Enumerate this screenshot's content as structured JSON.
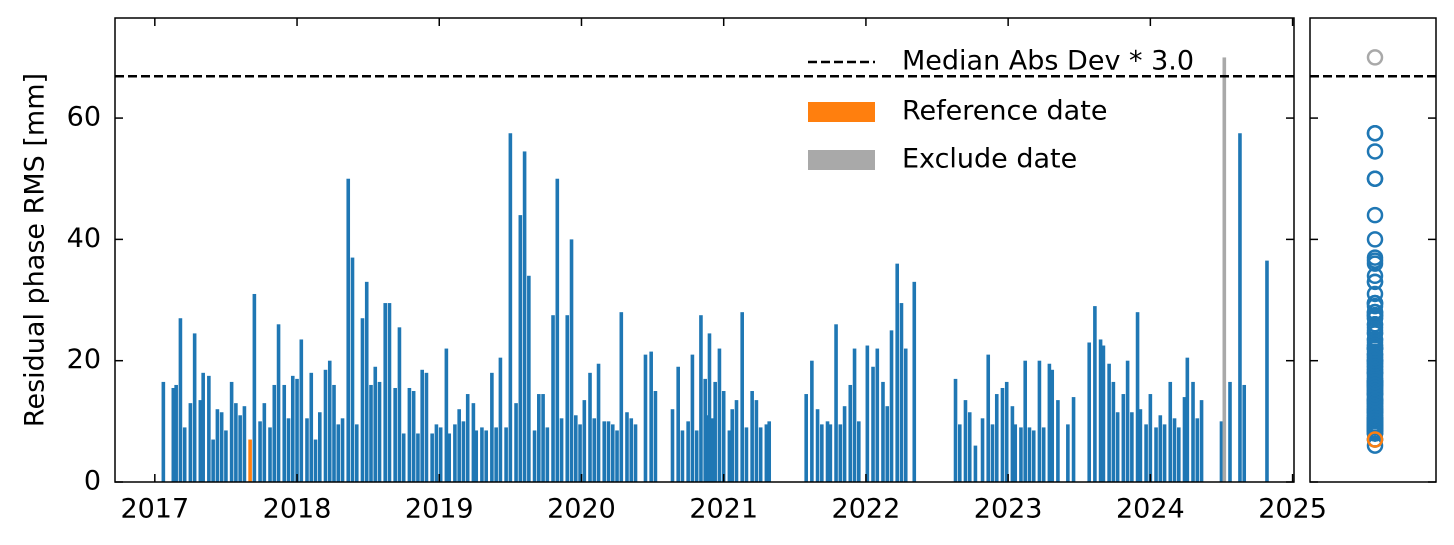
{
  "chart_data": {
    "type": "bar",
    "ylabel": "Residual phase RMS [mm]",
    "xlim": [
      2016.72,
      2025.01
    ],
    "ylim": [
      0,
      76.5
    ],
    "xticks": [
      2017,
      2018,
      2019,
      2020,
      2021,
      2022,
      2023,
      2024,
      2025
    ],
    "yticks": [
      0,
      20,
      40,
      60
    ],
    "legend": "upper right",
    "threshold": {
      "name": "Median Abs Dev * 3.0",
      "value": 66.9,
      "color": "#000000"
    },
    "series": [
      {
        "color": "#1f77b4",
        "x": [
          2017.06,
          2017.13,
          2017.15,
          2017.18,
          2017.21,
          2017.25,
          2017.28,
          2017.32,
          2017.34,
          2017.38,
          2017.41,
          2017.44,
          2017.47,
          2017.5,
          2017.54,
          2017.57,
          2017.6,
          2017.63,
          2017.7,
          2017.74,
          2017.77,
          2017.81,
          2017.84,
          2017.87,
          2017.91,
          2017.94,
          2017.97,
          2018.0,
          2018.03,
          2018.07,
          2018.1,
          2018.13,
          2018.16,
          2018.2,
          2018.23,
          2018.26,
          2018.29,
          2018.32,
          2018.36,
          2018.39,
          2018.42,
          2018.46,
          2018.49,
          2018.52,
          2018.55,
          2018.58,
          2018.62,
          2018.65,
          2018.69,
          2018.72,
          2018.75,
          2018.79,
          2018.82,
          2018.85,
          2018.88,
          2018.91,
          2018.95,
          2018.98,
          2019.01,
          2019.05,
          2019.07,
          2019.11,
          2019.14,
          2019.17,
          2019.2,
          2019.24,
          2019.26,
          2019.3,
          2019.33,
          2019.37,
          2019.4,
          2019.43,
          2019.47,
          2019.5,
          2019.54,
          2019.57,
          2019.6,
          2019.63,
          2019.67,
          2019.7,
          2019.73,
          2019.76,
          2019.8,
          2019.83,
          2019.86,
          2019.9,
          2019.93,
          2019.96,
          2019.99,
          2020.02,
          2020.06,
          2020.09,
          2020.12,
          2020.16,
          2020.19,
          2020.22,
          2020.25,
          2020.28,
          2020.32,
          2020.35,
          2020.38,
          2020.45,
          2020.49,
          2020.52,
          2020.64,
          2020.68,
          2020.71,
          2020.75,
          2020.78,
          2020.81,
          2020.84,
          2020.87,
          2020.89,
          2020.9,
          2020.92,
          2020.94,
          2020.97,
          2021.0,
          2021.04,
          2021.06,
          2021.09,
          2021.13,
          2021.16,
          2021.2,
          2021.23,
          2021.26,
          2021.3,
          2021.32,
          2021.58,
          2021.62,
          2021.66,
          2021.69,
          2021.73,
          2021.75,
          2021.79,
          2021.82,
          2021.85,
          2021.89,
          2021.92,
          2021.95,
          2022.01,
          2022.05,
          2022.08,
          2022.12,
          2022.15,
          2022.18,
          2022.22,
          2022.25,
          2022.28,
          2022.34,
          2022.63,
          2022.66,
          2022.7,
          2022.73,
          2022.77,
          2022.82,
          2022.86,
          2022.89,
          2022.92,
          2022.96,
          2022.99,
          2023.03,
          2023.05,
          2023.09,
          2023.12,
          2023.15,
          2023.18,
          2023.22,
          2023.25,
          2023.29,
          2023.31,
          2023.35,
          2023.42,
          2023.46,
          2023.57,
          2023.61,
          2023.65,
          2023.67,
          2023.71,
          2023.74,
          2023.77,
          2023.81,
          2023.84,
          2023.87,
          2023.91,
          2023.93,
          2023.97,
          2024.0,
          2024.04,
          2024.07,
          2024.1,
          2024.14,
          2024.17,
          2024.2,
          2024.24,
          2024.26,
          2024.3,
          2024.33,
          2024.36,
          2024.5,
          2024.56,
          2024.63,
          2024.66,
          2024.82
        ],
        "values": [
          16.5,
          15.5,
          16,
          27,
          9,
          13,
          24.5,
          13.5,
          18,
          17.5,
          7,
          12,
          11.5,
          8.5,
          16.5,
          13,
          11,
          12.5,
          31,
          10,
          13,
          9,
          16,
          26,
          16,
          10.5,
          17.5,
          17,
          23.5,
          10.5,
          18,
          7,
          11.5,
          18.5,
          20,
          16,
          9.5,
          10.5,
          50,
          37,
          9.5,
          27,
          33,
          16,
          19,
          16.5,
          29.5,
          29.5,
          15.5,
          25.5,
          8,
          15.5,
          15,
          8,
          18.5,
          18,
          8,
          9.5,
          9,
          22,
          8,
          9.5,
          12,
          10,
          14.5,
          13,
          8.5,
          9,
          8.5,
          18,
          9,
          20.5,
          9,
          57.5,
          13,
          44,
          54.5,
          34,
          8.5,
          14.5,
          14.5,
          9,
          27.5,
          50,
          10.5,
          27.5,
          40,
          11,
          9.5,
          13.5,
          18,
          10.5,
          19.5,
          10,
          10,
          9.5,
          8.5,
          28,
          11.5,
          10.5,
          9.5,
          21,
          21.5,
          15,
          12,
          19,
          8.5,
          10,
          21,
          8.5,
          27.5,
          17,
          11,
          24.5,
          10.5,
          16.5,
          22,
          15,
          8.5,
          12,
          13.5,
          28,
          9,
          15,
          13.5,
          9,
          9.5,
          10,
          14.5,
          20,
          12,
          9.5,
          10,
          9.5,
          26,
          9.5,
          12.5,
          16,
          22,
          10,
          22.5,
          19,
          22,
          16.5,
          12.5,
          25,
          36,
          29.5,
          22,
          33,
          17,
          9.5,
          13.5,
          11.5,
          6,
          10.5,
          21,
          9.5,
          14.5,
          15.5,
          16.5,
          12.5,
          9.5,
          9,
          20,
          9,
          8.5,
          20,
          9,
          19.5,
          18.5,
          13.5,
          9.5,
          14,
          23,
          29,
          23.5,
          22.5,
          19.5,
          16.5,
          11.5,
          14.5,
          20,
          11.5,
          28,
          12,
          9.5,
          14.5,
          9,
          11,
          9.5,
          16.5,
          10.5,
          9,
          14,
          20.5,
          16.5,
          10.5,
          13.5,
          10,
          16.5,
          57.5,
          16,
          36.5
        ]
      },
      {
        "name": "Reference date",
        "color": "#ff7f0e",
        "x": [
          2017.67
        ],
        "values": [
          7
        ]
      },
      {
        "name": "Exclude date",
        "color": "#a9a9a9",
        "x": [
          2024.52
        ],
        "values": [
          70
        ]
      }
    ]
  }
}
